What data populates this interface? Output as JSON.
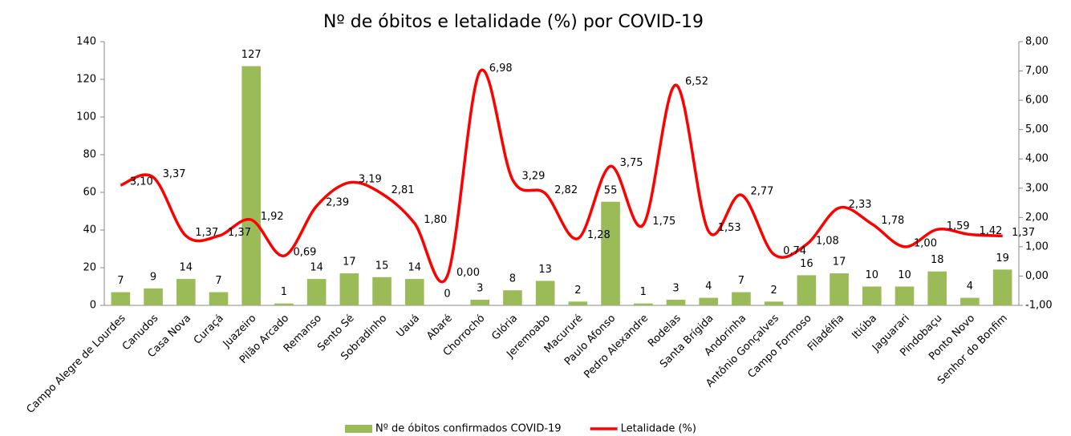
{
  "chart_data": {
    "type": "bar",
    "title": "Nº de óbitos e letalidade (%) por COVID-19",
    "categories": [
      "Campo Alegre de Lourdes",
      "Canudos",
      "Casa Nova",
      "Curaçá",
      "Juazeiro",
      "Pilão Arcado",
      "Remanso",
      "Sento Sé",
      "Sobradinho",
      "Uauá",
      "Abaré",
      "Chorrochó",
      "Glória",
      "Jeremoabo",
      "Macururé",
      "Paulo Afonso",
      "Pedro Alexandre",
      "Rodelas",
      "Santa Brígida",
      "Andorinha",
      "Antônio Gonçalves",
      "Campo Formoso",
      "Filadélfia",
      "Itiúba",
      "Jaguarari",
      "Pindobaçu",
      "Ponto Novo",
      "Senhor do Bonfim"
    ],
    "series": [
      {
        "name": "Nº de óbitos confirmados COVID-19",
        "type": "bar",
        "color": "#9bbb59",
        "values": [
          7,
          9,
          14,
          7,
          127,
          1,
          14,
          17,
          15,
          14,
          0,
          3,
          8,
          13,
          2,
          55,
          1,
          3,
          4,
          7,
          2,
          16,
          17,
          10,
          10,
          18,
          4,
          19
        ]
      },
      {
        "name": "Letalidade (%)",
        "type": "line",
        "smooth": true,
        "color": "#ff0000",
        "axis": "y2",
        "values": [
          3.1,
          3.37,
          1.37,
          1.37,
          1.92,
          0.69,
          2.39,
          3.19,
          2.81,
          1.8,
          0.0,
          6.98,
          3.29,
          2.82,
          1.28,
          3.75,
          1.75,
          6.52,
          1.53,
          2.77,
          0.74,
          1.08,
          2.33,
          1.78,
          1.0,
          1.59,
          1.42,
          1.37
        ],
        "value_labels": [
          "3,10",
          "3,37",
          "1,37",
          "1,37",
          "1,92",
          "0,69",
          "2,39",
          "3,19",
          "2,81",
          "1,80",
          "0,00",
          "6,98",
          "3,29",
          "2,82",
          "1,28",
          "3,75",
          "1,75",
          "6,52",
          "1,53",
          "2,77",
          "0,74",
          "1,08",
          "2,33",
          "1,78",
          "1,00",
          "1,59",
          "1,42",
          "1,37"
        ]
      }
    ],
    "ylim": [
      0,
      140
    ],
    "yticks": [
      0,
      20,
      40,
      60,
      80,
      100,
      120,
      140
    ],
    "y2lim": [
      -1,
      8
    ],
    "y2ticks": [
      {
        "value": -1,
        "label": "-1,00"
      },
      {
        "value": 0,
        "label": "0,00"
      },
      {
        "value": 1,
        "label": "1,00"
      },
      {
        "value": 2,
        "label": "2,00"
      },
      {
        "value": 3,
        "label": "3,00"
      },
      {
        "value": 4,
        "label": "4,00"
      },
      {
        "value": 5,
        "label": "5,00"
      },
      {
        "value": 6,
        "label": "6,00"
      },
      {
        "value": 7,
        "label": "7,00"
      },
      {
        "value": 8,
        "label": "8,00"
      }
    ],
    "legend": "bottom"
  }
}
